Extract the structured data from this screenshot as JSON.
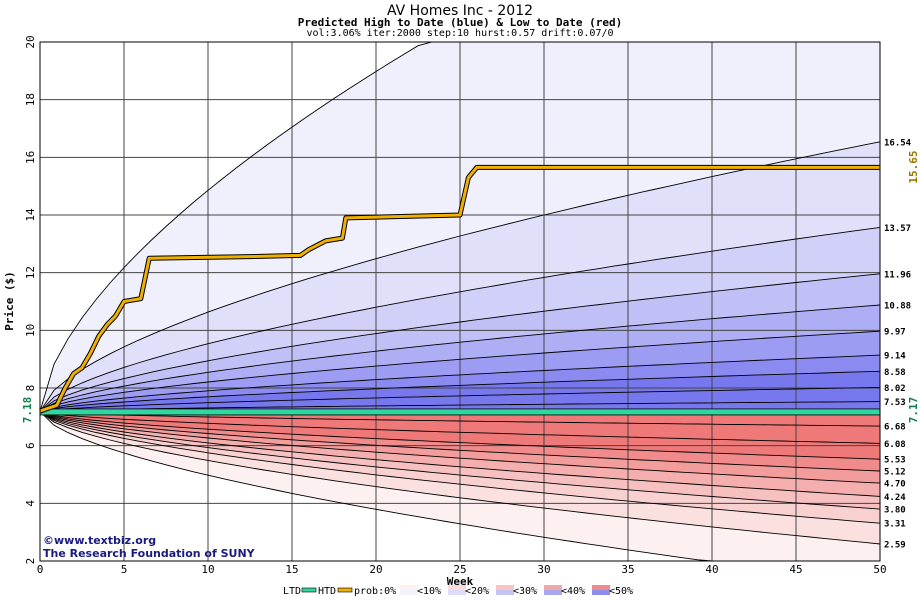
{
  "chart_data": {
    "type": "area",
    "title": "AV Homes Inc - 2012",
    "subtitle": "Predicted High to Date (blue) &  Low to Date (red)",
    "params": "vol:3.06% iter:2000 step:10 hurst:0.57 drift:0.07/0",
    "xlabel": "Week",
    "ylabel": "Price ($)",
    "xlim": [
      0,
      50
    ],
    "ylim": [
      2,
      20
    ],
    "xticks": [
      0,
      5,
      10,
      15,
      20,
      25,
      30,
      35,
      40,
      45,
      50
    ],
    "yticks": [
      2,
      4,
      6,
      8,
      10,
      12,
      14,
      16,
      18,
      20
    ],
    "grid": true,
    "start_price": 7.18,
    "start_label": "7.18",
    "ltd_value": 7.17,
    "ltd_label": "7.17",
    "htd_value": 15.65,
    "htd_label": "15.65",
    "upper_bands": [
      {
        "end": 16.54,
        "label": "16.54"
      },
      {
        "end": 13.57,
        "label": "13.57"
      },
      {
        "end": 11.96,
        "label": "11.96"
      },
      {
        "end": 10.88,
        "label": "10.88"
      },
      {
        "end": 9.97,
        "label": "9.97"
      },
      {
        "end": 9.14,
        "label": "9.14"
      },
      {
        "end": 8.58,
        "label": "8.58"
      },
      {
        "end": 8.02,
        "label": "8.02"
      },
      {
        "end": 7.53,
        "label": "7.53"
      }
    ],
    "lower_bands": [
      {
        "end": 6.68,
        "label": "6.68"
      },
      {
        "end": 6.08,
        "label": "6.08"
      },
      {
        "end": 5.53,
        "label": "5.53"
      },
      {
        "end": 5.12,
        "label": "5.12"
      },
      {
        "end": 4.7,
        "label": "4.70"
      },
      {
        "end": 4.24,
        "label": "4.24"
      },
      {
        "end": 3.8,
        "label": "3.80"
      },
      {
        "end": 3.31,
        "label": "3.31"
      },
      {
        "end": 2.59,
        "label": "2.59"
      }
    ],
    "htd_path": [
      [
        0,
        7.2
      ],
      [
        1,
        7.4
      ],
      [
        1.5,
        8.0
      ],
      [
        2,
        8.5
      ],
      [
        2.5,
        8.7
      ],
      [
        3,
        9.2
      ],
      [
        3.5,
        9.8
      ],
      [
        4,
        10.2
      ],
      [
        4.5,
        10.5
      ],
      [
        5,
        11.0
      ],
      [
        6,
        11.1
      ],
      [
        6.5,
        12.5
      ],
      [
        12,
        12.55
      ],
      [
        15.5,
        12.6
      ],
      [
        16,
        12.8
      ],
      [
        17,
        13.1
      ],
      [
        18,
        13.2
      ],
      [
        18.2,
        13.9
      ],
      [
        25,
        14.0
      ],
      [
        25.5,
        15.3
      ],
      [
        26,
        15.65
      ],
      [
        50,
        15.65
      ]
    ],
    "ltd_path": [
      [
        0,
        7.17
      ],
      [
        50,
        7.17
      ]
    ],
    "legend": {
      "ltd": "LTD",
      "htd": "HTD",
      "prob": "prob:0%",
      "ranges": [
        "<10%",
        "<20%",
        "<30%",
        "<40%",
        "<50%"
      ]
    },
    "credits": [
      "©www.textbiz.org",
      "The Research Foundation of SUNY"
    ],
    "colors": {
      "upper_fill": [
        "#f0f0fc",
        "#e0e0fa",
        "#d0d0f8",
        "#c0c0f6",
        "#aeaef4",
        "#9c9cf2",
        "#8a8af0",
        "#7878ee"
      ],
      "lower_fill": [
        "#fdf0f0",
        "#fbe0e0",
        "#f9d0d0",
        "#f7c0c0",
        "#f5aeae",
        "#f39c9c",
        "#f18a8a",
        "#ef7878"
      ],
      "htd": "#f0b000",
      "ltd": "#30d8a0",
      "label_htd": "#a07800",
      "label_ltd": "#108050"
    }
  }
}
